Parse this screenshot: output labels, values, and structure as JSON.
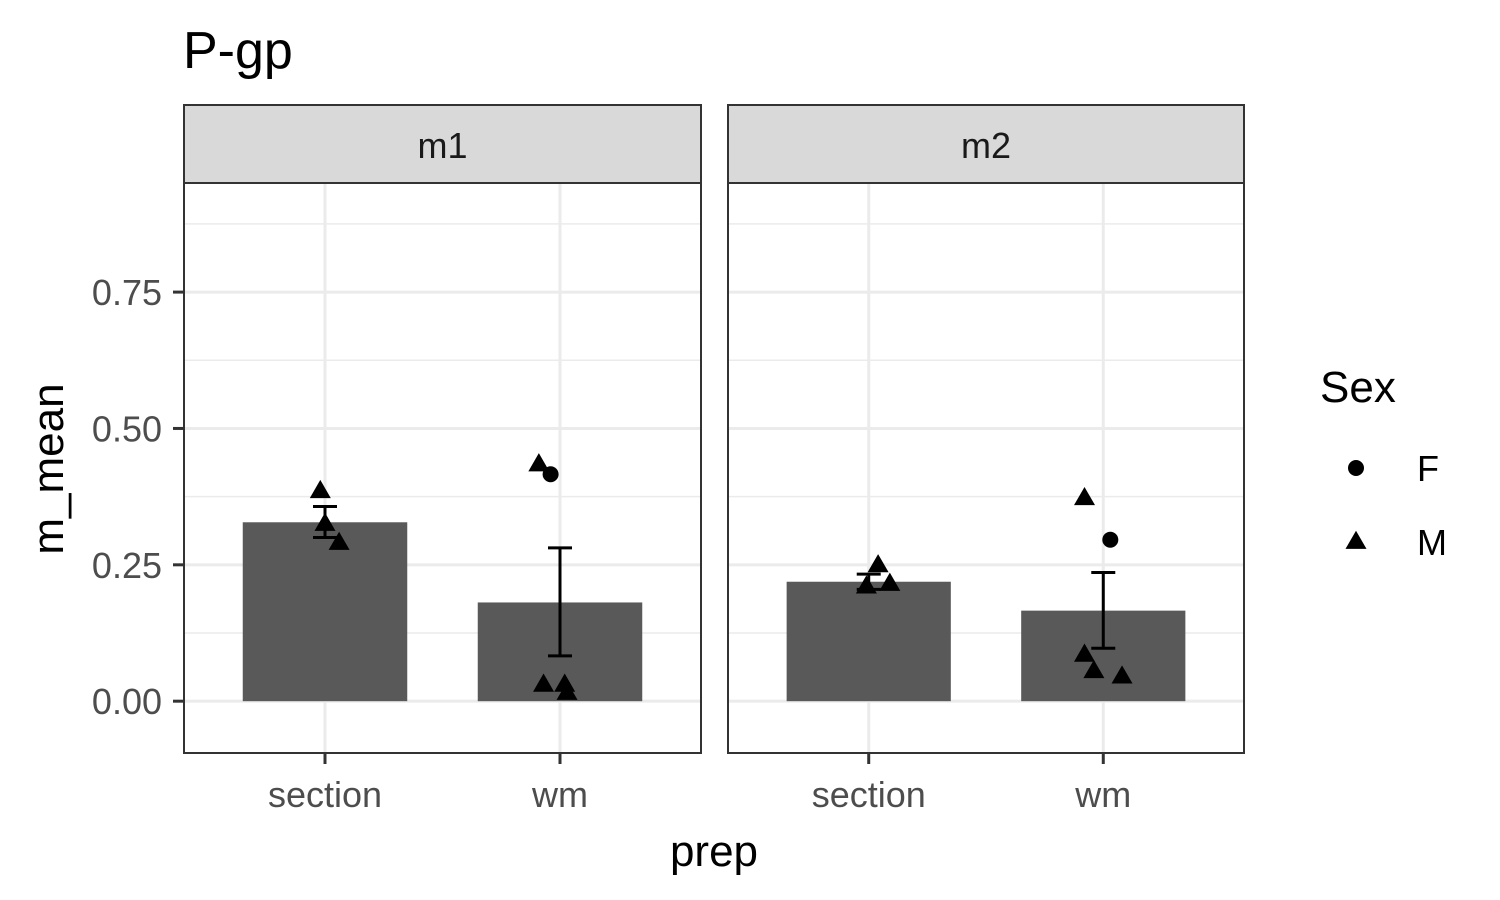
{
  "chart_data": {
    "type": "bar",
    "title": "P-gp",
    "xlabel": "prep",
    "ylabel": "m_mean",
    "ylim": [
      -0.095,
      0.95
    ],
    "yticks": [
      0.0,
      0.25,
      0.5,
      0.75
    ],
    "ytick_labels": [
      "0.00",
      "0.25",
      "0.50",
      "0.75"
    ],
    "grid": true,
    "categories": [
      "section",
      "wm"
    ],
    "legend": {
      "title": "Sex",
      "placement": "right",
      "entries": [
        {
          "label": "F",
          "shape": "circle"
        },
        {
          "label": "M",
          "shape": "triangle"
        }
      ]
    },
    "colors": {
      "bar": "#595959",
      "point": "#000000",
      "strip": "#d9d9d9",
      "grid": "#ebebeb",
      "border": "#333333"
    },
    "facets": [
      {
        "label": "m1",
        "bars": [
          {
            "category": "section",
            "mean": 0.328,
            "err_low": 0.3,
            "err_high": 0.357
          },
          {
            "category": "wm",
            "mean": 0.181,
            "err_low": 0.083,
            "err_high": 0.281
          }
        ],
        "points": [
          {
            "category": "section",
            "jitter": -0.02,
            "y": 0.385,
            "sex": "M"
          },
          {
            "category": "section",
            "jitter": 0.0,
            "y": 0.325,
            "sex": "M"
          },
          {
            "category": "section",
            "jitter": 0.06,
            "y": 0.29,
            "sex": "M"
          },
          {
            "category": "wm",
            "jitter": -0.09,
            "y": 0.434,
            "sex": "M"
          },
          {
            "category": "wm",
            "jitter": -0.07,
            "y": 0.03,
            "sex": "M"
          },
          {
            "category": "wm",
            "jitter": 0.02,
            "y": 0.03,
            "sex": "M"
          },
          {
            "category": "wm",
            "jitter": 0.03,
            "y": 0.015,
            "sex": "M"
          },
          {
            "category": "wm",
            "jitter": -0.04,
            "y": 0.416,
            "sex": "F"
          }
        ]
      },
      {
        "label": "m2",
        "bars": [
          {
            "category": "section",
            "mean": 0.219,
            "err_low": 0.205,
            "err_high": 0.233
          },
          {
            "category": "wm",
            "mean": 0.166,
            "err_low": 0.097,
            "err_high": 0.236
          }
        ],
        "points": [
          {
            "category": "section",
            "jitter": -0.01,
            "y": 0.21,
            "sex": "M"
          },
          {
            "category": "section",
            "jitter": 0.04,
            "y": 0.249,
            "sex": "M"
          },
          {
            "category": "section",
            "jitter": 0.09,
            "y": 0.215,
            "sex": "M"
          },
          {
            "category": "wm",
            "jitter": -0.08,
            "y": 0.372,
            "sex": "M"
          },
          {
            "category": "wm",
            "jitter": -0.08,
            "y": 0.085,
            "sex": "M"
          },
          {
            "category": "wm",
            "jitter": -0.04,
            "y": 0.055,
            "sex": "M"
          },
          {
            "category": "wm",
            "jitter": 0.08,
            "y": 0.045,
            "sex": "M"
          },
          {
            "category": "wm",
            "jitter": 0.03,
            "y": 0.296,
            "sex": "F"
          }
        ]
      }
    ]
  }
}
